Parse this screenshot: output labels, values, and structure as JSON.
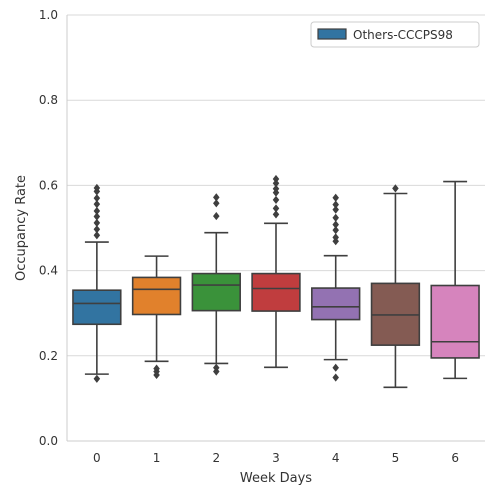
{
  "chart_data": {
    "type": "box",
    "xlabel": "Week Days",
    "ylabel": "Occupancy Rate",
    "ylim": [
      0,
      1
    ],
    "yticks": [
      "0.0",
      "0.2",
      "0.4",
      "0.6",
      "0.8",
      "1.0"
    ],
    "grid": "horizontal",
    "legend_position": "top-right",
    "legend": [
      {
        "label": "Others-CCCPS98",
        "color": "#3274a1"
      }
    ],
    "categories": [
      "0",
      "1",
      "2",
      "3",
      "4",
      "5",
      "6"
    ],
    "boxes": [
      {
        "category": "0",
        "color": "#3274a1",
        "whisker_low": 0.157,
        "q1": 0.274,
        "median": 0.323,
        "q3": 0.354,
        "whisker_high": 0.467,
        "outliers": [
          0.146,
          0.483,
          0.497,
          0.512,
          0.527,
          0.54,
          0.556,
          0.57,
          0.586,
          0.594
        ]
      },
      {
        "category": "1",
        "color": "#e1812c",
        "whisker_low": 0.187,
        "q1": 0.297,
        "median": 0.356,
        "q3": 0.384,
        "whisker_high": 0.434,
        "outliers": [
          0.155,
          0.163,
          0.17
        ]
      },
      {
        "category": "2",
        "color": "#3a923a",
        "whisker_low": 0.182,
        "q1": 0.306,
        "median": 0.366,
        "q3": 0.393,
        "whisker_high": 0.489,
        "outliers": [
          0.163,
          0.172,
          0.528,
          0.558,
          0.572
        ]
      },
      {
        "category": "3",
        "color": "#c03d3e",
        "whisker_low": 0.173,
        "q1": 0.305,
        "median": 0.358,
        "q3": 0.393,
        "whisker_high": 0.511,
        "outliers": [
          0.532,
          0.546,
          0.566,
          0.583,
          0.592,
          0.605,
          0.615
        ]
      },
      {
        "category": "4",
        "color": "#9372b2",
        "whisker_low": 0.191,
        "q1": 0.285,
        "median": 0.315,
        "q3": 0.359,
        "whisker_high": 0.435,
        "outliers": [
          0.149,
          0.172,
          0.469,
          0.478,
          0.495,
          0.508,
          0.524,
          0.543,
          0.555,
          0.571
        ]
      },
      {
        "category": "5",
        "color": "#845b53",
        "whisker_low": 0.126,
        "q1": 0.225,
        "median": 0.296,
        "q3": 0.37,
        "whisker_high": 0.581,
        "outliers": [
          0.593
        ]
      },
      {
        "category": "6",
        "color": "#d684bd",
        "whisker_low": 0.147,
        "q1": 0.195,
        "median": 0.233,
        "q3": 0.365,
        "whisker_high": 0.609,
        "outliers": []
      }
    ]
  }
}
